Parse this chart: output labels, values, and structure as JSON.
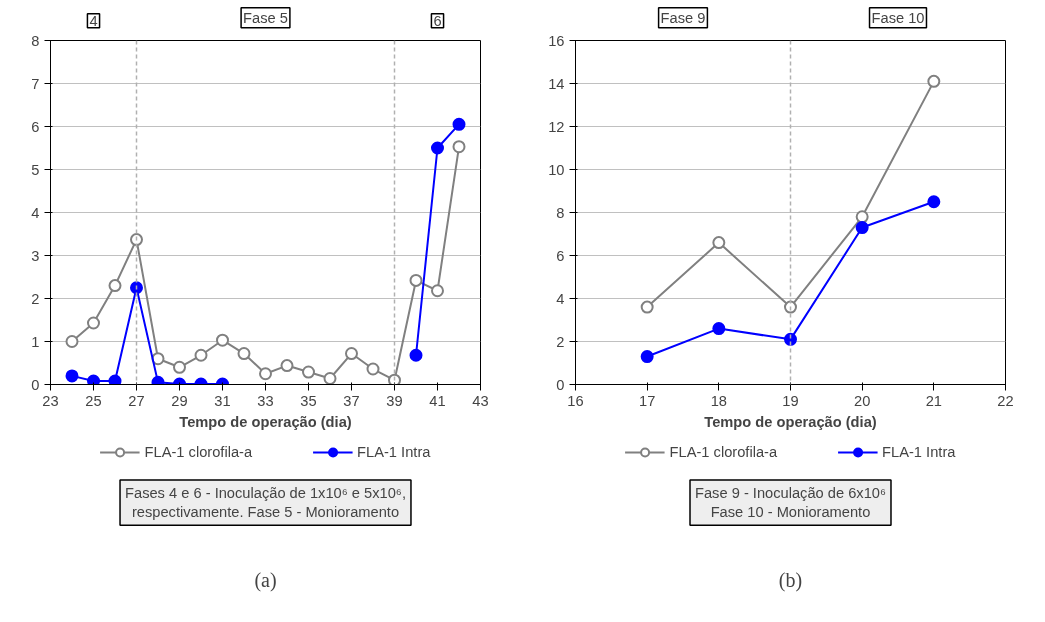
{
  "chart_data": [
    {
      "type": "line",
      "xlabel": "Tempo de operação (dia)",
      "xlim": [
        23,
        43
      ],
      "xticks": [
        23,
        25,
        27,
        29,
        31,
        33,
        35,
        37,
        39,
        41,
        43
      ],
      "ylim": [
        0,
        8
      ],
      "yticks": [
        0,
        1,
        2,
        3,
        4,
        5,
        6,
        7,
        8
      ],
      "grid": "y",
      "legend": "bottom",
      "marker": "circle",
      "line_style": "solid",
      "x": [
        24,
        25,
        26,
        27,
        28,
        29,
        30,
        31,
        32,
        33,
        34,
        35,
        36,
        37,
        38,
        39,
        40,
        41,
        42
      ],
      "series": [
        {
          "name": "FLA-1 clorofila-a",
          "color": "#808080",
          "values": [
            1.0,
            1.43,
            2.3,
            3.37,
            0.6,
            0.4,
            0.68,
            1.03,
            0.72,
            0.25,
            0.44,
            0.29,
            0.14,
            0.72,
            0.36,
            0.1,
            2.42,
            2.18,
            5.53
          ]
        },
        {
          "name": "FLA-1 Intra",
          "color": "#0000ff",
          "values": [
            0.2,
            0.08,
            0.08,
            2.25,
            0.05,
            0.01,
            0.01,
            0.01,
            null,
            null,
            null,
            null,
            null,
            null,
            null,
            null,
            0.68,
            5.5,
            6.05
          ]
        }
      ],
      "ref_lines": [
        {
          "axis": "x",
          "value": 27,
          "color": "#b0b0b0",
          "line_style": "dashed"
        },
        {
          "axis": "x",
          "value": 39,
          "color": "#b0b0b0",
          "line_style": "dashed"
        }
      ],
      "annotations": [
        "4",
        "Fase 5",
        "6",
        "Fases 4 e 6 - Inoculação de 1x10⁶ e 5x10⁶,\nrespectivamente. Fase 5 - Monioramento",
        "(a)"
      ]
    },
    {
      "type": "line",
      "xlabel": "Tempo de operação (dia)",
      "xlim": [
        16,
        22
      ],
      "xticks": [
        16,
        17,
        18,
        19,
        20,
        21,
        22
      ],
      "ylim": [
        0,
        16
      ],
      "yticks": [
        0,
        2,
        4,
        6,
        8,
        10,
        12,
        14,
        16
      ],
      "grid": "y",
      "legend": "bottom",
      "marker": "circle",
      "line_style": "solid",
      "x": [
        17,
        18,
        19,
        20,
        21
      ],
      "series": [
        {
          "name": "FLA-1 clorofila-a",
          "color": "#808080",
          "values": [
            3.6,
            6.6,
            3.6,
            7.8,
            14.1
          ]
        },
        {
          "name": "FLA-1 Intra",
          "color": "#0000ff",
          "values": [
            1.3,
            2.6,
            2.1,
            7.3,
            8.5
          ]
        }
      ],
      "ref_lines": [
        {
          "axis": "x",
          "value": 19,
          "color": "#b0b0b0",
          "line_style": "dashed"
        }
      ],
      "annotations": [
        "Fase 9",
        "Fase 10",
        "Fase 9 - Inoculação de 6x10⁶\nFase 10 - Monioramento",
        "(b)"
      ]
    }
  ]
}
